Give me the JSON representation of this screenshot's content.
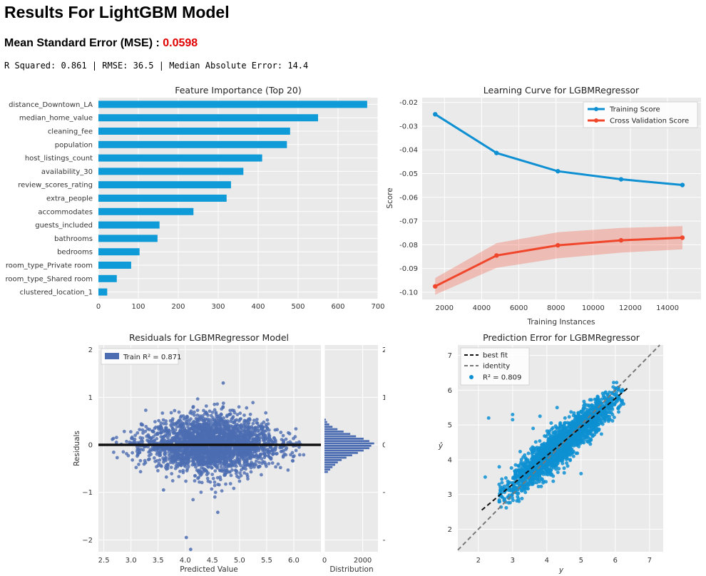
{
  "header": {
    "title": "Results For LightGBM Model",
    "mse_label": "Mean Standard Error (MSE) : ",
    "mse_value": "0.0598",
    "metrics": "R Squared: 0.861 | RMSE: 36.5 | Median Absolute Error: 14.4"
  },
  "colors": {
    "accent": "#e00000",
    "bar": "#0e9bd8",
    "train": "#0e90d2",
    "cv": "#f0462b",
    "resid": "#4c6db1",
    "plot_bg": "#eaeaea"
  },
  "chart_data": [
    {
      "type": "bar",
      "orientation": "horizontal",
      "title": "Feature Importance (Top 20)",
      "xlim": [
        0,
        700
      ],
      "xticks": [
        "0",
        "100",
        "200",
        "300",
        "400",
        "500",
        "600",
        "700"
      ],
      "categories": [
        "distance_Downtown_LA",
        "median_home_value",
        "cleaning_fee",
        "population",
        "host_listings_count",
        "availability_30",
        "review_scores_rating",
        "extra_people",
        "accommodates",
        "guests_included",
        "bathrooms",
        "bedrooms",
        "room_type_Private room",
        "room_type_Shared room",
        "clustered_location_1"
      ],
      "values": [
        673,
        550,
        480,
        472,
        410,
        363,
        332,
        321,
        238,
        153,
        148,
        103,
        82,
        46,
        22
      ]
    },
    {
      "type": "line",
      "title": "Learning Curve for LGBMRegressor",
      "xlabel": "Training Instances",
      "ylabel": "Score",
      "xlim": [
        800,
        15800
      ],
      "ylim": [
        -0.103,
        -0.018
      ],
      "xticks": [
        "2000",
        "4000",
        "6000",
        "8000",
        "10000",
        "12000",
        "14000"
      ],
      "yticks": [
        "-0.02",
        "-0.03",
        "-0.04",
        "-0.05",
        "-0.06",
        "-0.07",
        "-0.08",
        "-0.09",
        "-0.10"
      ],
      "x": [
        1500,
        4800,
        8100,
        11500,
        14800
      ],
      "series": [
        {
          "name": "Training Score",
          "values": [
            -0.025,
            -0.0413,
            -0.049,
            -0.0524,
            -0.0548
          ],
          "band": [
            0.0004,
            0.0004,
            0.0004,
            0.0004,
            0.0004
          ]
        },
        {
          "name": "Cross Validation Score",
          "values": [
            -0.0975,
            -0.0845,
            -0.0802,
            -0.0781,
            -0.077
          ],
          "band": [
            0.0035,
            0.0052,
            0.0055,
            0.0052,
            0.0049
          ]
        }
      ]
    },
    {
      "type": "scatter",
      "title": "Residuals for LGBMRegressor Model",
      "xlabel": "Predicted Value",
      "ylabel": "Residuals",
      "xlim": [
        2.4,
        6.5
      ],
      "ylim": [
        -2.25,
        2.1
      ],
      "xticks": [
        "2.5",
        "3.0",
        "3.5",
        "4.0",
        "4.5",
        "5.0",
        "5.5",
        "6.0"
      ],
      "yticks": [
        "2",
        "1",
        "0",
        "−1",
        "−2"
      ],
      "legend": "Train R² = 0.871",
      "outliers": [
        [
          4.1,
          -2.2
        ],
        [
          4.02,
          -1.95
        ],
        [
          4.7,
          1.3
        ],
        [
          3.6,
          -0.95
        ],
        [
          4.6,
          -1.42
        ]
      ],
      "histogram": {
        "xlabel": "Distribution",
        "xlim": [
          0,
          2800
        ],
        "xticks": [
          "0",
          "2000"
        ],
        "bin_width": 0.05,
        "bin_starts": [
          -0.6,
          -0.55,
          -0.5,
          -0.45,
          -0.4,
          -0.35,
          -0.3,
          -0.25,
          -0.2,
          -0.15,
          -0.1,
          -0.05,
          0.0,
          0.05,
          0.1,
          0.15,
          0.2,
          0.25,
          0.3,
          0.35,
          0.4,
          0.45,
          0.5
        ],
        "counts": [
          180,
          300,
          420,
          560,
          700,
          900,
          1150,
          1450,
          1750,
          2050,
          2350,
          2450,
          2600,
          2350,
          2050,
          1650,
          1350,
          1000,
          680,
          420,
          250,
          140,
          70
        ]
      }
    },
    {
      "type": "scatter",
      "title": "Prediction Error for LGBMRegressor",
      "xlabel": "y",
      "ylabel": "ŷ",
      "xlim": [
        1.4,
        7.4
      ],
      "ylim": [
        1.35,
        7.3
      ],
      "xticks": [
        "2",
        "3",
        "4",
        "5",
        "6",
        "7"
      ],
      "yticks": [
        "7",
        "6",
        "5",
        "4",
        "3",
        "2"
      ],
      "legend": [
        "best fit",
        "identity",
        "R² = 0.809"
      ],
      "best_fit": [
        [
          2.1,
          2.55
        ],
        [
          6.35,
          6.05
        ]
      ],
      "identity": [
        [
          1.4,
          1.4
        ],
        [
          7.3,
          7.3
        ]
      ],
      "outliers": [
        [
          2.3,
          5.2
        ],
        [
          3.0,
          5.3
        ],
        [
          3.0,
          5.15
        ],
        [
          2.2,
          3.5
        ],
        [
          3.8,
          5.25
        ],
        [
          4.3,
          5.5
        ],
        [
          3.6,
          4.9
        ],
        [
          5.0,
          3.6
        ]
      ]
    }
  ]
}
